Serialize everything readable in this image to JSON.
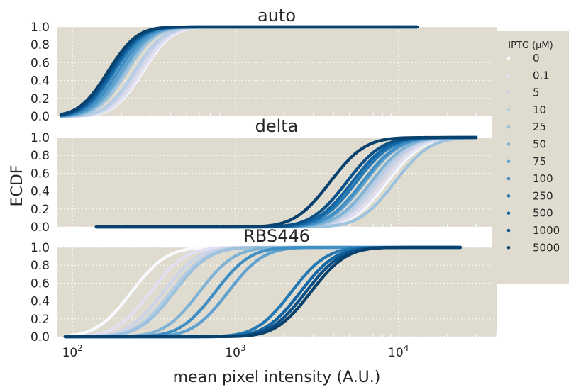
{
  "chart_data": {
    "type": "line",
    "xlabel": "mean pixel intensity (A.U.)",
    "ylabel": "ECDF",
    "xscale": "log",
    "xlim": [
      80,
      40000
    ],
    "ylim": [
      0,
      1
    ],
    "x_ticks": [
      {
        "base": "10",
        "exp": "2",
        "value": 100
      },
      {
        "base": "10",
        "exp": "3",
        "value": 1000
      },
      {
        "base": "10",
        "exp": "4",
        "value": 10000
      }
    ],
    "y_ticks": [
      "0.0",
      "0.2",
      "0.4",
      "0.6",
      "0.8",
      "1.0"
    ],
    "grid": true,
    "background": "#e0dbcf",
    "legend": {
      "title": "IPTG (μM)",
      "placement": "right",
      "entries": [
        {
          "label": "0",
          "color": "#f7fbff"
        },
        {
          "label": "0.1",
          "color": "#e1e0f2"
        },
        {
          "label": "5",
          "color": "#cdd4ea"
        },
        {
          "label": "10",
          "color": "#b6cde3"
        },
        {
          "label": "25",
          "color": "#9cc2dd"
        },
        {
          "label": "50",
          "color": "#7fb3d6"
        },
        {
          "label": "75",
          "color": "#5fa2cf"
        },
        {
          "label": "100",
          "color": "#3f8fc4"
        },
        {
          "label": "250",
          "color": "#2479b4"
        },
        {
          "label": "500",
          "color": "#1366a3"
        },
        {
          "label": "1000",
          "color": "#0b5188"
        },
        {
          "label": "5000",
          "color": "#08406e"
        }
      ]
    },
    "panels": [
      {
        "title": "auto",
        "series_medians": [
          270,
          265,
          250,
          240,
          215,
          205,
          200,
          190,
          180,
          175,
          170,
          165
        ],
        "spread": 0.14,
        "x_min": 85,
        "x_max": 13000
      },
      {
        "title": "delta",
        "series_medians": [
          8500,
          8200,
          7600,
          7200,
          9500,
          6800,
          6200,
          6000,
          5500,
          5200,
          4800,
          3800
        ],
        "spread": 0.17,
        "x_min": 140,
        "x_max": 30000
      },
      {
        "title": "RBS446",
        "series_medians": [
          230,
          300,
          360,
          400,
          420,
          600,
          900,
          750,
          2200,
          2500,
          2700,
          2900
        ],
        "spread": 0.17,
        "x_min": 90,
        "x_max": 24000
      }
    ]
  }
}
